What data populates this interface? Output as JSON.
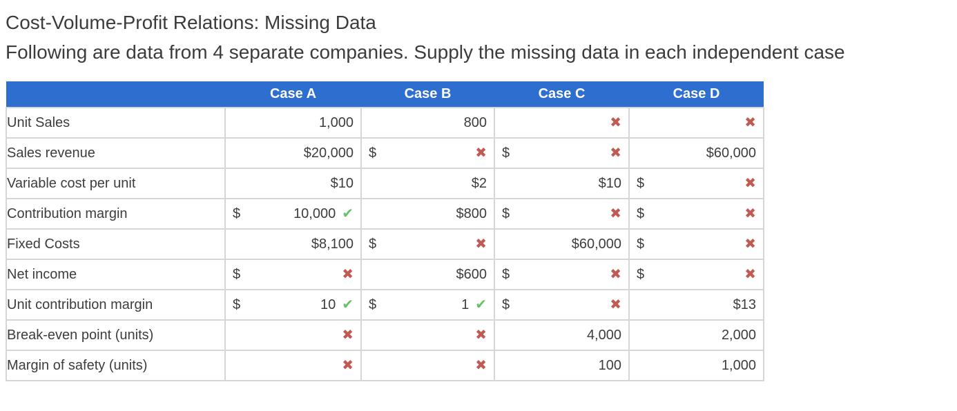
{
  "page": {
    "title": "Cost-Volume-Profit Relations: Missing Data",
    "subtitle": "Following are data from 4 separate companies. Supply the missing data in each independent case"
  },
  "colors": {
    "header_blue": "#2d6ecf",
    "input_cell_gray": "#ededed",
    "border_gray": "#d6d6d6",
    "correct_green": "#6abf69",
    "incorrect_red": "#c15a52",
    "text": "#3d3d3d"
  },
  "icons": {
    "correct": "✔",
    "incorrect": "✖"
  },
  "table": {
    "columns": [
      "",
      "Case A",
      "Case B",
      "Case C",
      "Case D"
    ],
    "rows": [
      {
        "label": "Unit Sales",
        "cells": [
          {
            "type": "given",
            "value": "1,000"
          },
          {
            "type": "given",
            "value": "800"
          },
          {
            "type": "input",
            "mark": "incorrect"
          },
          {
            "type": "input",
            "mark": "incorrect"
          }
        ]
      },
      {
        "label": "Sales revenue",
        "cells": [
          {
            "type": "given",
            "value": "$20,000"
          },
          {
            "type": "input",
            "prefix": "$",
            "mark": "incorrect"
          },
          {
            "type": "input",
            "prefix": "$",
            "mark": "incorrect"
          },
          {
            "type": "given",
            "value": "$60,000"
          }
        ]
      },
      {
        "label": "Variable cost per unit",
        "cells": [
          {
            "type": "given",
            "value": "$10"
          },
          {
            "type": "given",
            "value": "$2"
          },
          {
            "type": "given",
            "value": "$10"
          },
          {
            "type": "input",
            "prefix": "$",
            "mark": "incorrect"
          }
        ]
      },
      {
        "label": "Contribution margin",
        "cells": [
          {
            "type": "input",
            "prefix": "$",
            "value": "10,000",
            "mark": "correct"
          },
          {
            "type": "given",
            "value": "$800"
          },
          {
            "type": "input",
            "prefix": "$",
            "mark": "incorrect"
          },
          {
            "type": "input",
            "prefix": "$",
            "mark": "incorrect"
          }
        ]
      },
      {
        "label": "Fixed Costs",
        "cells": [
          {
            "type": "given",
            "value": "$8,100"
          },
          {
            "type": "input",
            "prefix": "$",
            "mark": "incorrect"
          },
          {
            "type": "given",
            "value": "$60,000"
          },
          {
            "type": "input",
            "prefix": "$",
            "mark": "incorrect"
          }
        ]
      },
      {
        "label": "Net income",
        "cells": [
          {
            "type": "input",
            "prefix": "$",
            "mark": "incorrect"
          },
          {
            "type": "given",
            "value": "$600"
          },
          {
            "type": "input",
            "prefix": "$",
            "mark": "incorrect"
          },
          {
            "type": "input",
            "prefix": "$",
            "mark": "incorrect"
          }
        ]
      },
      {
        "label": "Unit contribution margin",
        "cells": [
          {
            "type": "input",
            "prefix": "$",
            "value": "10",
            "mark": "correct"
          },
          {
            "type": "input",
            "prefix": "$",
            "value": "1",
            "mark": "correct"
          },
          {
            "type": "input",
            "prefix": "$",
            "mark": "incorrect"
          },
          {
            "type": "given",
            "value": "$13"
          }
        ]
      },
      {
        "label": "Break-even point (units)",
        "cells": [
          {
            "type": "input",
            "mark": "incorrect"
          },
          {
            "type": "input",
            "mark": "incorrect"
          },
          {
            "type": "given",
            "value": "4,000"
          },
          {
            "type": "given",
            "value": "2,000"
          }
        ]
      },
      {
        "label": "Margin of safety (units)",
        "cells": [
          {
            "type": "input",
            "mark": "incorrect"
          },
          {
            "type": "input",
            "mark": "incorrect"
          },
          {
            "type": "given",
            "value": "100"
          },
          {
            "type": "given",
            "value": "1,000"
          }
        ]
      }
    ]
  }
}
